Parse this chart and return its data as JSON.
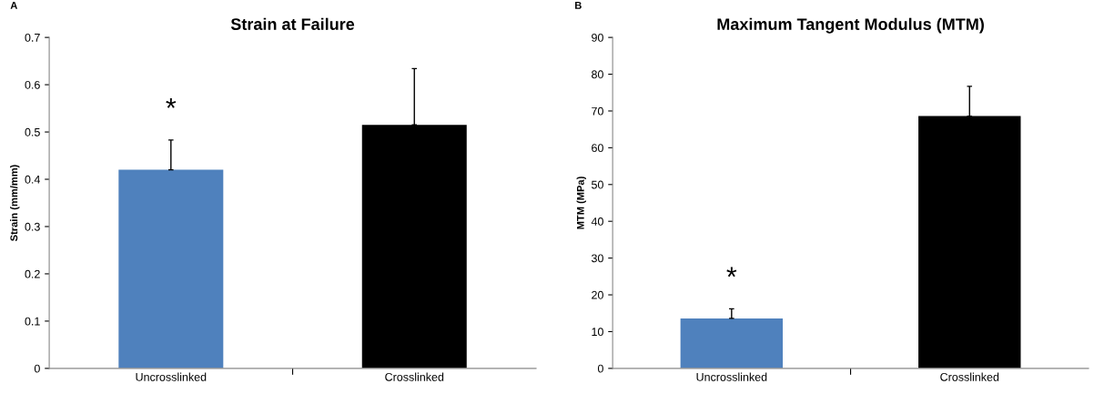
{
  "chart_data": [
    {
      "type": "bar",
      "title": "Strain at Failure",
      "ylabel": "Strain (mm/mm)",
      "categories": [
        "Uncrosslinked",
        "Crosslinked"
      ],
      "values": [
        0.42,
        0.515
      ],
      "colors": [
        "#4f81bd",
        "#000000"
      ],
      "errors": [
        [
          0.42,
          0.483
        ],
        [
          0.515,
          0.634
        ]
      ],
      "ylim": [
        0,
        0.7
      ],
      "yticks": [
        0,
        0.1,
        0.2,
        0.3,
        0.4,
        0.5,
        0.6,
        0.7
      ],
      "annotations": [
        "A",
        "*"
      ]
    },
    {
      "type": "bar",
      "title": "Maximum Tangent Modulus (MTM)",
      "ylabel": "MTM (MPa)",
      "categories": [
        "Uncrosslinked",
        "Crosslinked"
      ],
      "values": [
        13.6,
        68.6
      ],
      "colors": [
        "#4f81bd",
        "#000000"
      ],
      "errors": [
        [
          13.6,
          16.2
        ],
        [
          68.6,
          76.7
        ]
      ],
      "ylim": [
        0,
        90
      ],
      "yticks": [
        0,
        10,
        20,
        30,
        40,
        50,
        60,
        70,
        80,
        90
      ],
      "annotations": [
        "B",
        "*"
      ]
    }
  ]
}
